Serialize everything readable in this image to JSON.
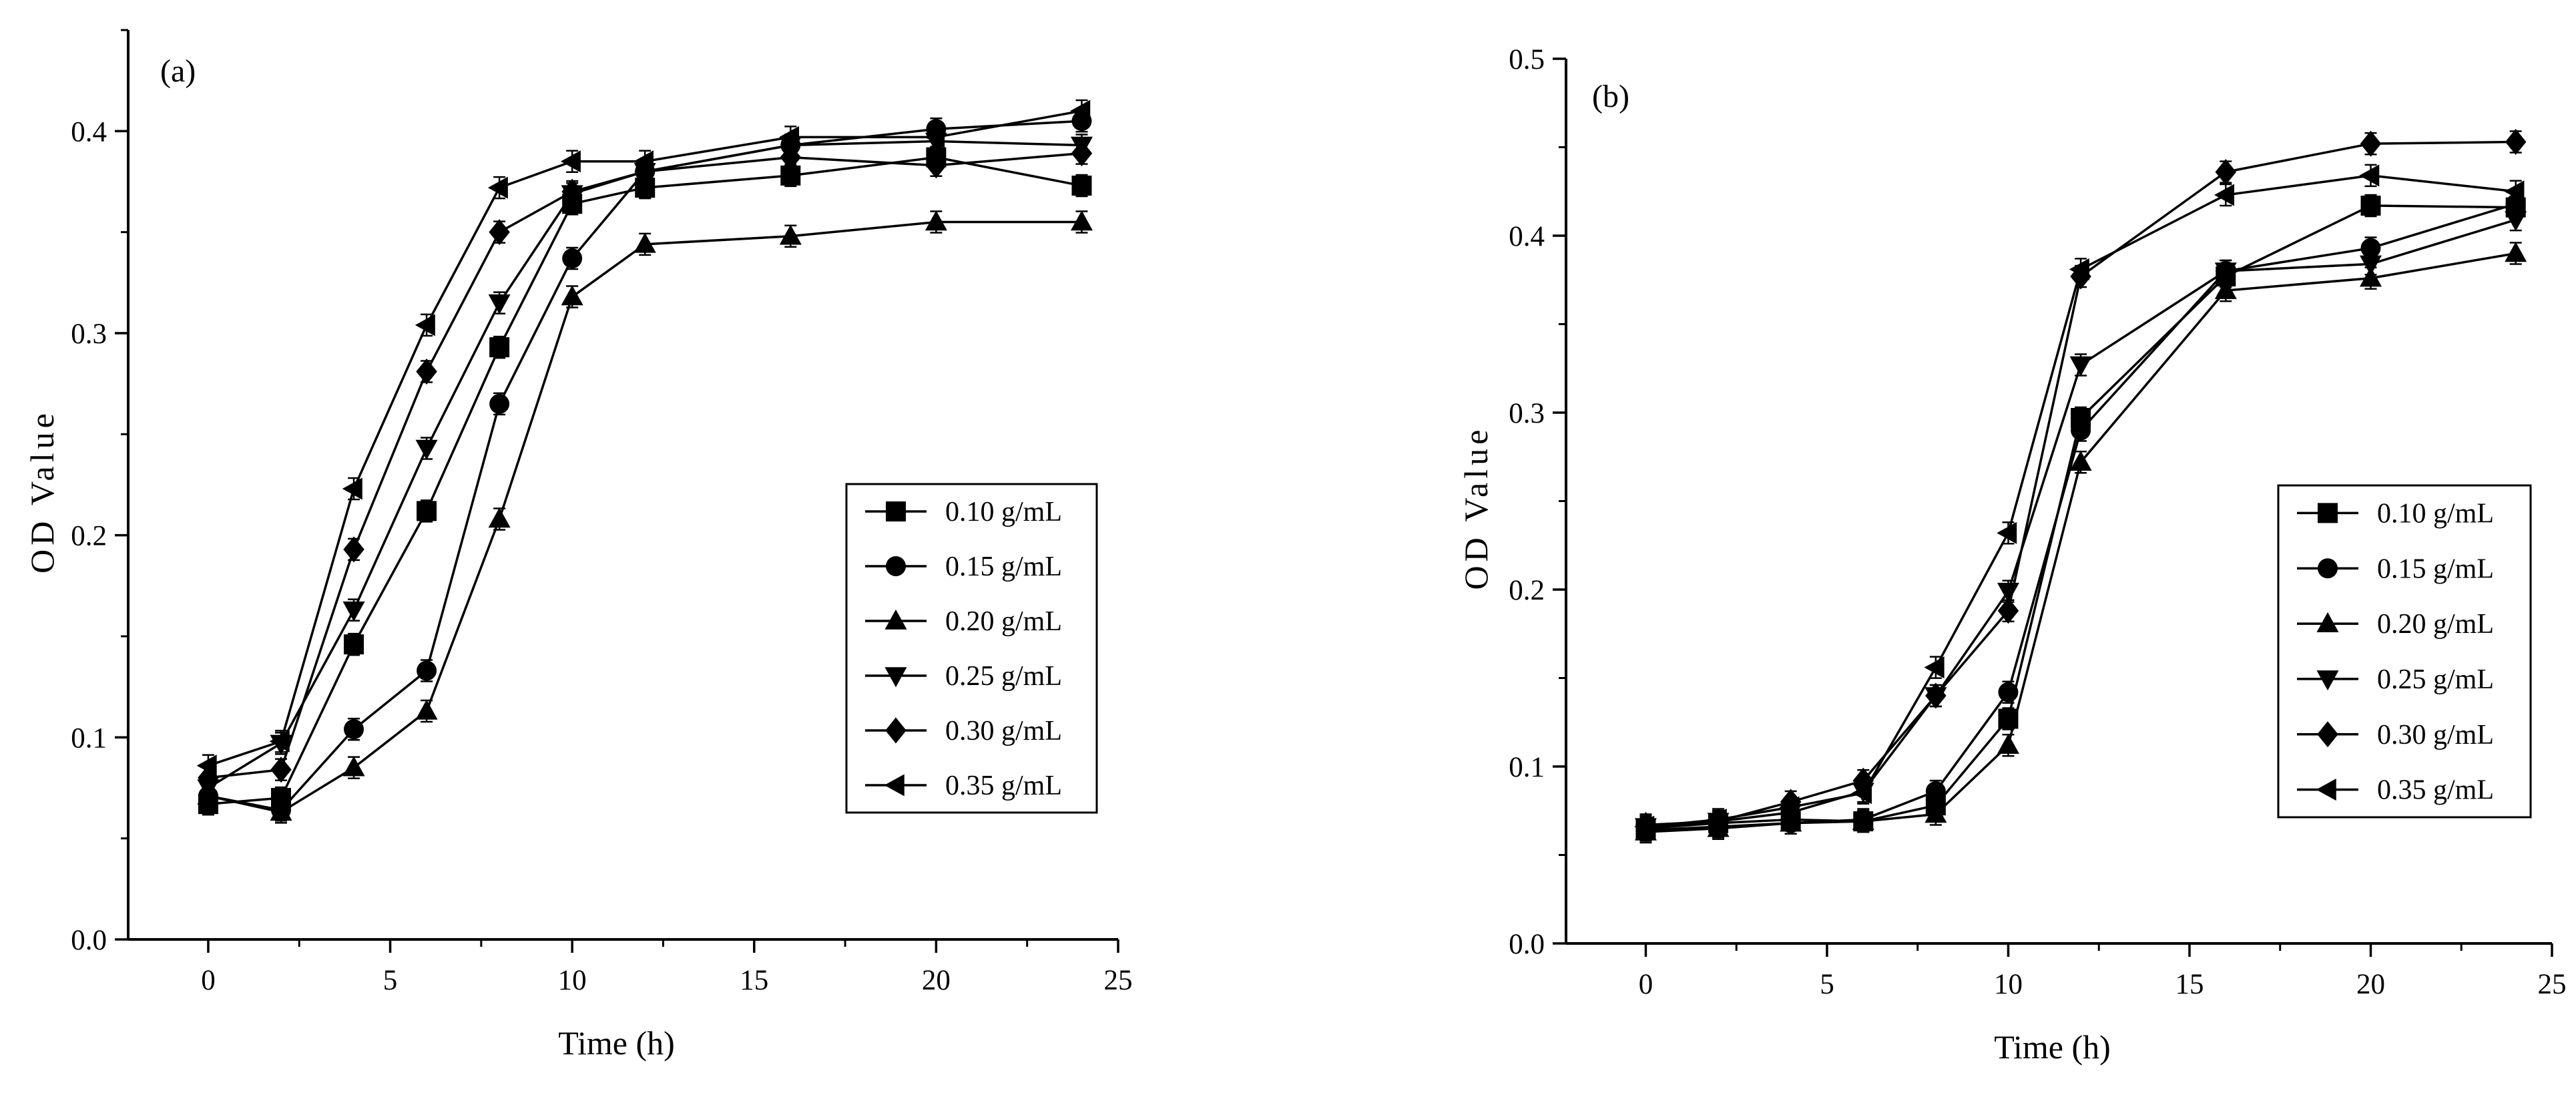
{
  "chart_data": [
    {
      "type": "line",
      "panel_label": "(a)",
      "xlabel": "Time (h)",
      "ylabel": "OD Value",
      "xlim": [
        -2.2,
        25
      ],
      "ylim": [
        0,
        0.45
      ],
      "xticks": [
        0,
        5,
        10,
        15,
        20,
        25
      ],
      "xtick_labels": [
        "0",
        "5",
        "10",
        "15",
        "20",
        "25"
      ],
      "yticks": [
        0,
        0.1,
        0.2,
        0.3,
        0.4
      ],
      "ytick_labels": [
        "0.0",
        "0.1",
        "0.2",
        "0.3",
        "0.4"
      ],
      "grid": false,
      "legend_position": "center-right",
      "x": [
        0,
        2,
        4,
        6,
        8,
        10,
        12,
        16,
        20,
        24
      ],
      "series": [
        {
          "name": "0.10 g/mL",
          "marker": "square",
          "values": [
            0.067,
            0.07,
            0.146,
            0.212,
            0.293,
            0.364,
            0.372,
            0.378,
            0.387,
            0.373
          ]
        },
        {
          "name": "0.15 g/mL",
          "marker": "circle",
          "values": [
            0.071,
            0.064,
            0.104,
            0.133,
            0.265,
            0.337,
            0.38,
            0.393,
            0.401,
            0.405
          ]
        },
        {
          "name": "0.20 g/mL",
          "marker": "triangle-up",
          "values": [
            0.071,
            0.063,
            0.085,
            0.113,
            0.208,
            0.318,
            0.344,
            0.348,
            0.355,
            0.355
          ]
        },
        {
          "name": "0.25 g/mL",
          "marker": "triangle-down",
          "values": [
            0.075,
            0.097,
            0.163,
            0.243,
            0.315,
            0.369,
            0.38,
            0.393,
            0.395,
            0.393
          ]
        },
        {
          "name": "0.30 g/mL",
          "marker": "diamond",
          "values": [
            0.08,
            0.084,
            0.193,
            0.281,
            0.35,
            0.37,
            0.38,
            0.387,
            0.383,
            0.389
          ]
        },
        {
          "name": "0.35 g/mL",
          "marker": "triangle-left",
          "values": [
            0.086,
            0.098,
            0.223,
            0.304,
            0.372,
            0.385,
            0.385,
            0.397,
            0.397,
            0.41
          ]
        }
      ]
    },
    {
      "type": "line",
      "panel_label": "(b)",
      "xlabel": "Time (h)",
      "ylabel": "OD Value",
      "xlim": [
        -2.2,
        25
      ],
      "ylim": [
        0,
        0.5
      ],
      "xticks": [
        0,
        5,
        10,
        15,
        20,
        25
      ],
      "xtick_labels": [
        "0",
        "5",
        "10",
        "15",
        "20",
        "25"
      ],
      "yticks": [
        0,
        0.1,
        0.2,
        0.3,
        0.4,
        0.5
      ],
      "ytick_labels": [
        "0.0",
        "0.1",
        "0.2",
        "0.3",
        "0.4",
        "0.5"
      ],
      "grid": false,
      "legend_position": "center-right",
      "x": [
        0,
        2,
        4,
        6,
        8,
        10,
        12,
        16,
        20,
        24
      ],
      "series": [
        {
          "name": "0.10 g/mL",
          "marker": "square",
          "values": [
            0.065,
            0.068,
            0.07,
            0.069,
            0.078,
            0.127,
            0.297,
            0.377,
            0.417,
            0.416
          ]
        },
        {
          "name": "0.15 g/mL",
          "marker": "circle",
          "values": [
            0.064,
            0.066,
            0.068,
            0.07,
            0.086,
            0.142,
            0.29,
            0.38,
            0.393,
            0.418
          ]
        },
        {
          "name": "0.20 g/mL",
          "marker": "triangle-up",
          "values": [
            0.063,
            0.065,
            0.068,
            0.069,
            0.073,
            0.112,
            0.272,
            0.369,
            0.376,
            0.39
          ]
        },
        {
          "name": "0.25 g/mL",
          "marker": "triangle-down",
          "values": [
            0.066,
            0.069,
            0.074,
            0.086,
            0.14,
            0.199,
            0.327,
            0.38,
            0.384,
            0.409
          ]
        },
        {
          "name": "0.30 g/mL",
          "marker": "diamond",
          "values": [
            0.067,
            0.069,
            0.08,
            0.092,
            0.14,
            0.188,
            0.377,
            0.436,
            0.452,
            0.453
          ]
        },
        {
          "name": "0.35 g/mL",
          "marker": "triangle-left",
          "values": [
            0.066,
            0.07,
            0.077,
            0.085,
            0.156,
            0.232,
            0.381,
            0.423,
            0.434,
            0.425
          ]
        }
      ]
    }
  ]
}
